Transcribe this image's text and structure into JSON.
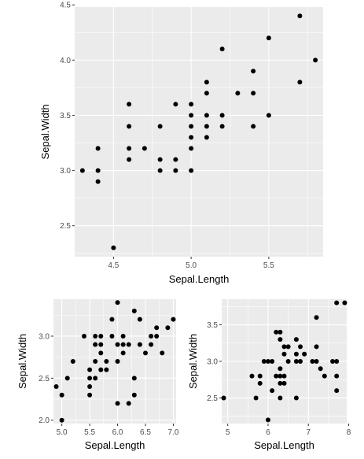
{
  "chart_data": [
    {
      "type": "scatter",
      "xlabel": "Sepal.Length",
      "ylabel": "Sepal.Width",
      "xlim": [
        4.25,
        5.85
      ],
      "ylim": [
        2.22,
        4.48
      ],
      "xticks": [
        4.5,
        5.0,
        5.5
      ],
      "xtick_labels": [
        "4.5",
        "5.0",
        "5.5"
      ],
      "yticks": [
        2.5,
        3.0,
        3.5,
        4.0,
        4.5
      ],
      "ytick_labels": [
        "2.5",
        "3.0",
        "3.5",
        "4.0",
        "4.5"
      ],
      "grid": true,
      "legend": "none",
      "point_color": "#000000",
      "background": "#ebebeb",
      "points": [
        [
          4.3,
          3.0
        ],
        [
          4.4,
          2.9
        ],
        [
          4.4,
          3.0
        ],
        [
          4.4,
          3.2
        ],
        [
          4.5,
          2.3
        ],
        [
          4.6,
          3.1
        ],
        [
          4.6,
          3.2
        ],
        [
          4.6,
          3.4
        ],
        [
          4.6,
          3.6
        ],
        [
          4.7,
          3.2
        ],
        [
          4.8,
          3.0
        ],
        [
          4.8,
          3.1
        ],
        [
          4.8,
          3.4
        ],
        [
          4.9,
          3.0
        ],
        [
          4.9,
          3.1
        ],
        [
          4.9,
          3.6
        ],
        [
          5.0,
          3.0
        ],
        [
          5.0,
          3.2
        ],
        [
          5.0,
          3.3
        ],
        [
          5.0,
          3.4
        ],
        [
          5.0,
          3.5
        ],
        [
          5.0,
          3.6
        ],
        [
          5.1,
          3.3
        ],
        [
          5.1,
          3.4
        ],
        [
          5.1,
          3.5
        ],
        [
          5.1,
          3.7
        ],
        [
          5.1,
          3.8
        ],
        [
          5.2,
          3.4
        ],
        [
          5.2,
          3.5
        ],
        [
          5.2,
          4.1
        ],
        [
          5.3,
          3.7
        ],
        [
          5.4,
          3.4
        ],
        [
          5.4,
          3.7
        ],
        [
          5.4,
          3.9
        ],
        [
          5.5,
          3.5
        ],
        [
          5.5,
          4.2
        ],
        [
          5.7,
          3.8
        ],
        [
          5.7,
          4.4
        ],
        [
          5.8,
          4.0
        ]
      ]
    },
    {
      "type": "scatter",
      "xlabel": "Sepal.Length",
      "ylabel": "Sepal.Width",
      "xlim": [
        4.85,
        7.05
      ],
      "ylim": [
        1.96,
        3.44
      ],
      "xticks": [
        5.0,
        5.5,
        6.0,
        6.5,
        7.0
      ],
      "xtick_labels": [
        "5.0",
        "5.5",
        "6.0",
        "6.5",
        "7.0"
      ],
      "yticks": [
        2.0,
        2.5,
        3.0
      ],
      "ytick_labels": [
        "2.0",
        "2.5",
        "3.0"
      ],
      "grid": true,
      "legend": "none",
      "point_color": "#000000",
      "background": "#ebebeb",
      "points": [
        [
          4.9,
          2.4
        ],
        [
          5.0,
          2.0
        ],
        [
          5.0,
          2.3
        ],
        [
          5.1,
          2.5
        ],
        [
          5.2,
          2.7
        ],
        [
          5.4,
          3.0
        ],
        [
          5.5,
          2.3
        ],
        [
          5.5,
          2.4
        ],
        [
          5.5,
          2.5
        ],
        [
          5.5,
          2.6
        ],
        [
          5.6,
          2.5
        ],
        [
          5.6,
          2.7
        ],
        [
          5.6,
          2.9
        ],
        [
          5.6,
          3.0
        ],
        [
          5.7,
          2.6
        ],
        [
          5.7,
          2.8
        ],
        [
          5.7,
          2.9
        ],
        [
          5.7,
          3.0
        ],
        [
          5.8,
          2.6
        ],
        [
          5.8,
          2.7
        ],
        [
          5.9,
          3.0
        ],
        [
          5.9,
          3.2
        ],
        [
          6.0,
          2.2
        ],
        [
          6.0,
          2.7
        ],
        [
          6.0,
          2.9
        ],
        [
          6.0,
          3.4
        ],
        [
          6.1,
          2.8
        ],
        [
          6.1,
          2.9
        ],
        [
          6.1,
          3.0
        ],
        [
          6.2,
          2.2
        ],
        [
          6.2,
          2.9
        ],
        [
          6.3,
          2.3
        ],
        [
          6.3,
          2.5
        ],
        [
          6.3,
          3.3
        ],
        [
          6.4,
          2.9
        ],
        [
          6.4,
          3.2
        ],
        [
          6.5,
          2.8
        ],
        [
          6.6,
          2.9
        ],
        [
          6.6,
          3.0
        ],
        [
          6.7,
          3.0
        ],
        [
          6.7,
          3.1
        ],
        [
          6.8,
          2.8
        ],
        [
          6.9,
          3.1
        ],
        [
          7.0,
          3.2
        ]
      ]
    },
    {
      "type": "scatter",
      "xlabel": "Sepal.Length",
      "ylabel": "Sepal.Width",
      "xlim": [
        4.85,
        7.95
      ],
      "ylim": [
        2.15,
        3.85
      ],
      "xticks": [
        5,
        6,
        7,
        8
      ],
      "xtick_labels": [
        "5",
        "6",
        "7",
        "8"
      ],
      "yticks": [
        2.5,
        3.0,
        3.5
      ],
      "ytick_labels": [
        "2.5",
        "3.0",
        "3.5"
      ],
      "grid": true,
      "legend": "none",
      "point_color": "#000000",
      "background": "#ebebeb",
      "points": [
        [
          4.9,
          2.5
        ],
        [
          5.6,
          2.8
        ],
        [
          5.7,
          2.5
        ],
        [
          5.8,
          2.7
        ],
        [
          5.8,
          2.8
        ],
        [
          5.9,
          3.0
        ],
        [
          6.0,
          2.2
        ],
        [
          6.0,
          3.0
        ],
        [
          6.1,
          2.6
        ],
        [
          6.1,
          3.0
        ],
        [
          6.2,
          2.8
        ],
        [
          6.2,
          3.4
        ],
        [
          6.3,
          2.5
        ],
        [
          6.3,
          2.7
        ],
        [
          6.3,
          2.8
        ],
        [
          6.3,
          2.9
        ],
        [
          6.3,
          3.3
        ],
        [
          6.3,
          3.4
        ],
        [
          6.4,
          2.7
        ],
        [
          6.4,
          2.8
        ],
        [
          6.4,
          3.1
        ],
        [
          6.4,
          3.2
        ],
        [
          6.5,
          3.0
        ],
        [
          6.5,
          3.2
        ],
        [
          6.7,
          2.5
        ],
        [
          6.7,
          3.0
        ],
        [
          6.7,
          3.1
        ],
        [
          6.7,
          3.3
        ],
        [
          6.8,
          3.0
        ],
        [
          6.8,
          3.2
        ],
        [
          6.9,
          3.1
        ],
        [
          7.1,
          3.0
        ],
        [
          7.2,
          3.0
        ],
        [
          7.2,
          3.2
        ],
        [
          7.2,
          3.6
        ],
        [
          7.3,
          2.9
        ],
        [
          7.4,
          2.8
        ],
        [
          7.6,
          3.0
        ],
        [
          7.7,
          2.6
        ],
        [
          7.7,
          2.8
        ],
        [
          7.7,
          3.0
        ],
        [
          7.7,
          3.8
        ],
        [
          7.9,
          3.8
        ]
      ]
    }
  ]
}
